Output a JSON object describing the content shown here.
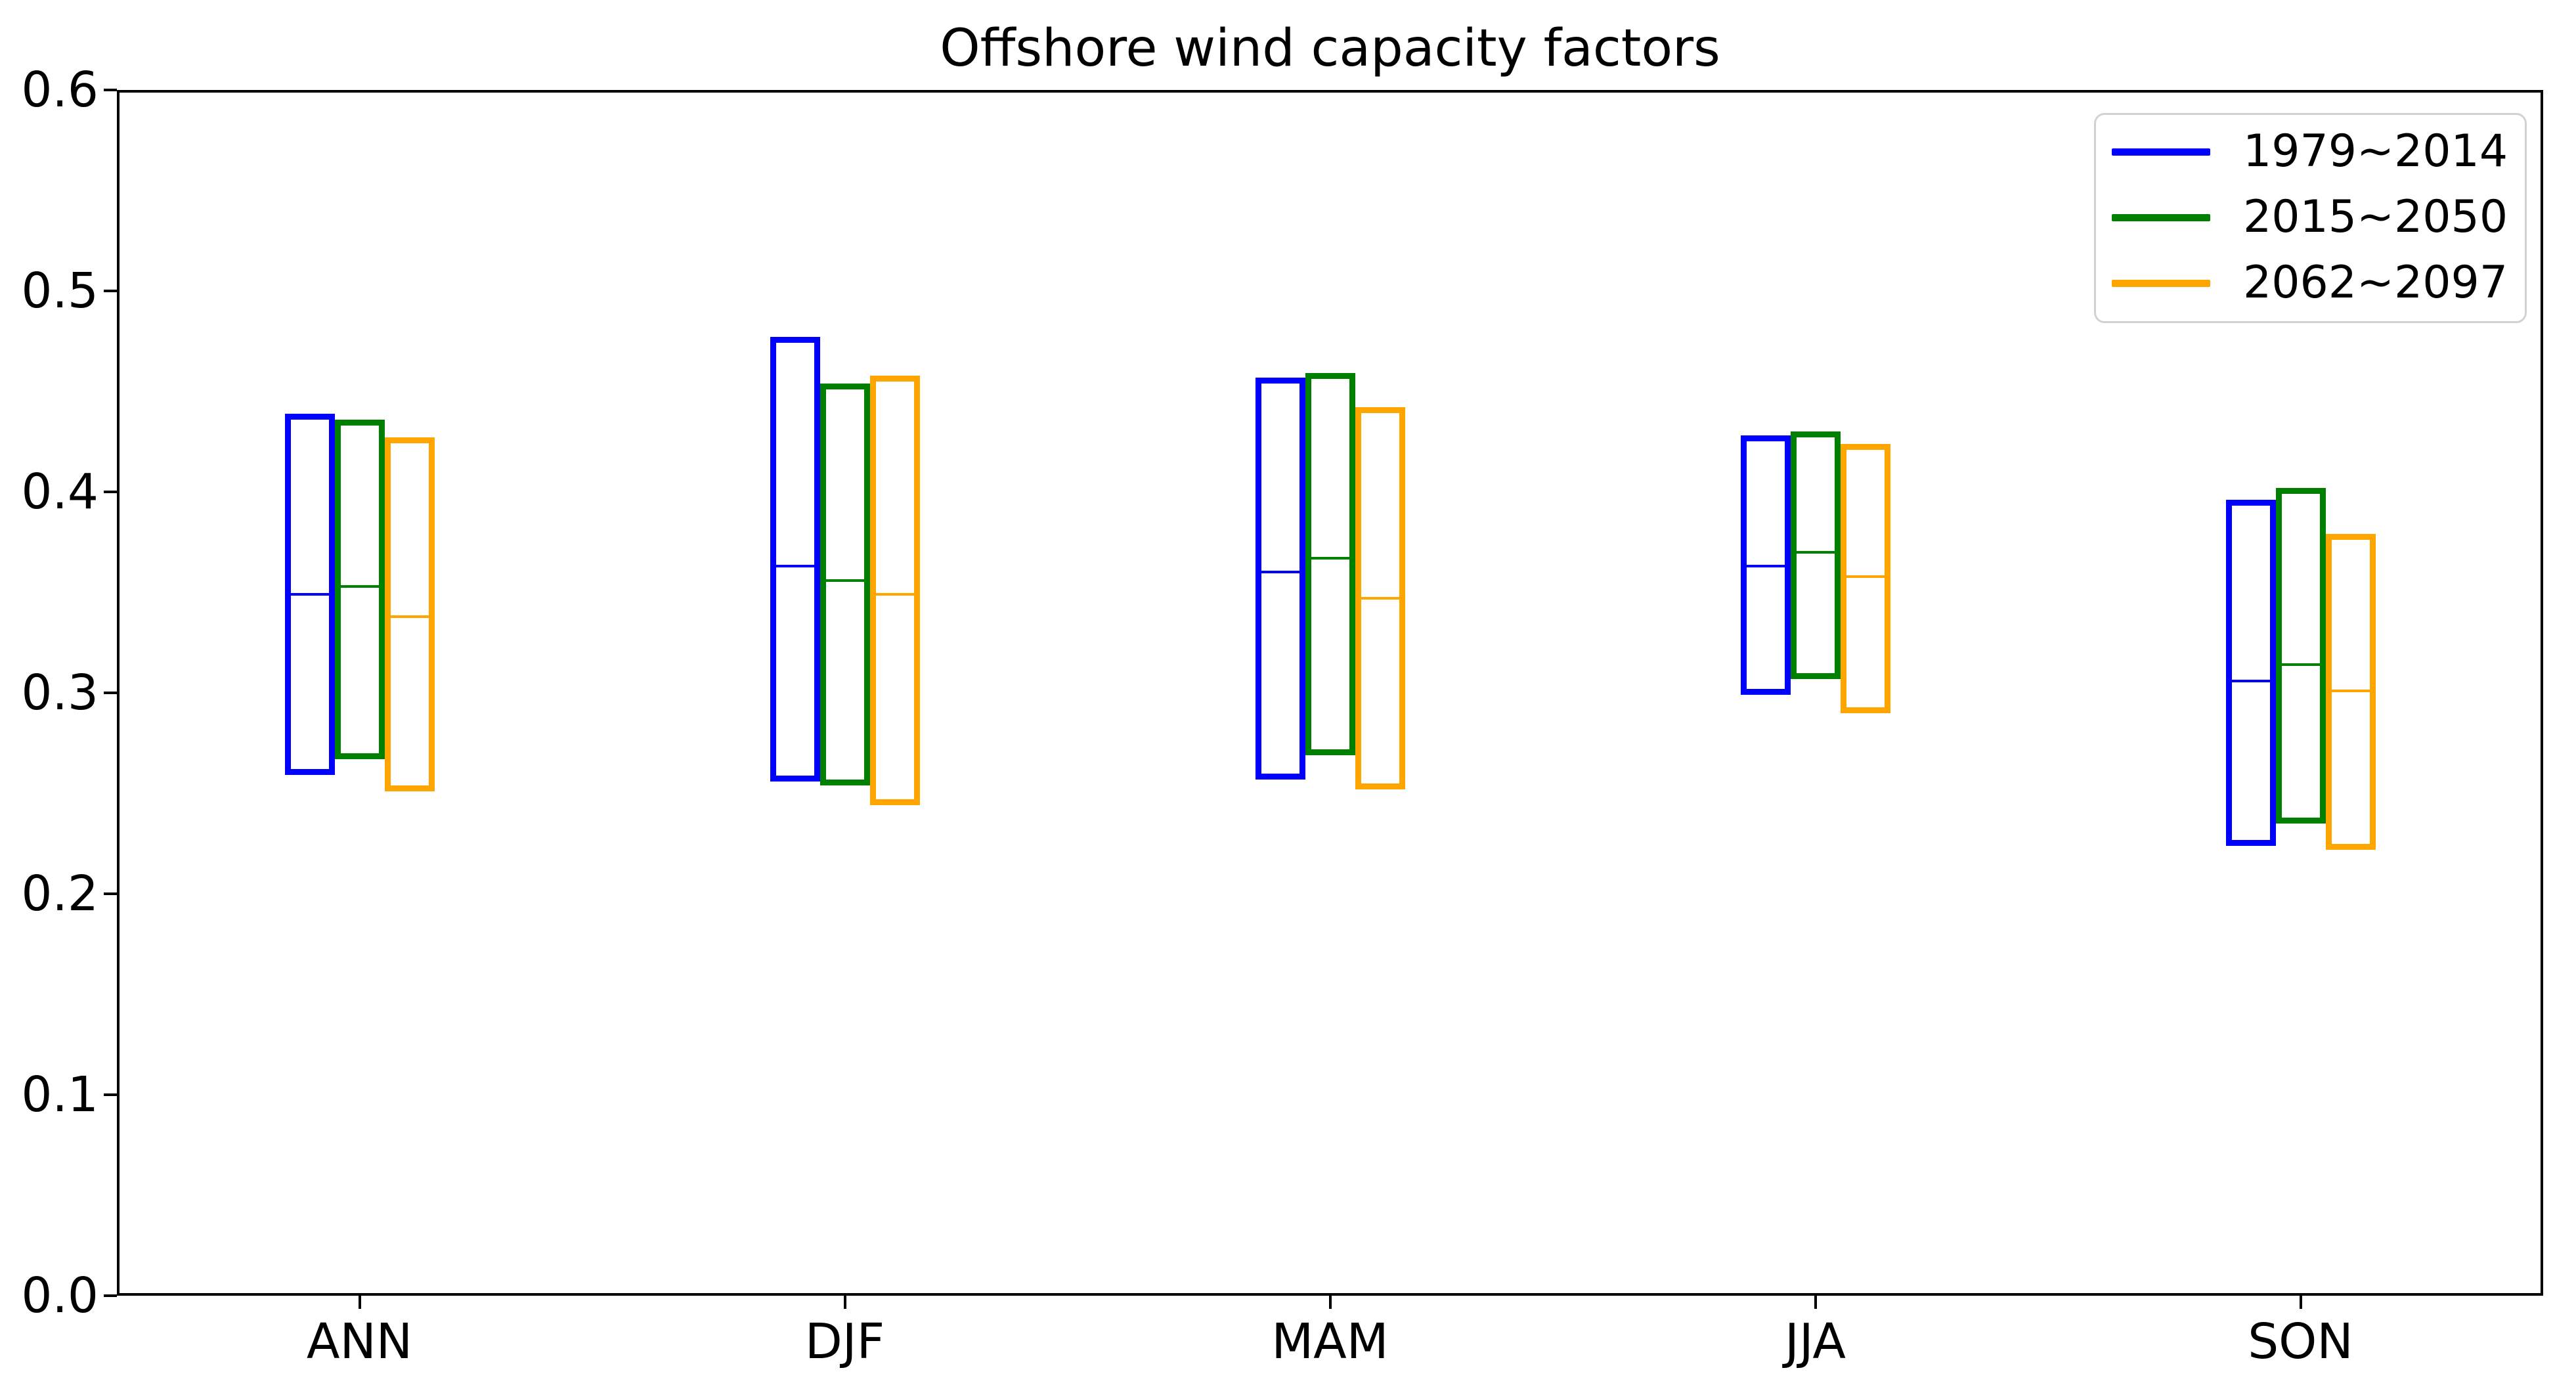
{
  "title": "Offshore wind capacity factors",
  "axis": {
    "y_tick_labels": [
      "0.0",
      "0.1",
      "0.2",
      "0.3",
      "0.4",
      "0.5",
      "0.6"
    ],
    "x_tick_labels": [
      "ANN",
      "DJF",
      "MAM",
      "JJA",
      "SON"
    ]
  },
  "legend": {
    "entries": [
      "1979~2014",
      "2015~2050",
      "2062~2097"
    ]
  },
  "colors": {
    "series_blue": "#0000ff",
    "series_green": "#008000",
    "series_orange": "#ffa500",
    "spine": "#000000",
    "legend_border": "#d2d2d2"
  },
  "chart_data": {
    "type": "boxplot",
    "title": "Offshore wind capacity factors",
    "categories": [
      "ANN",
      "DJF",
      "MAM",
      "JJA",
      "SON"
    ],
    "ylabel": "",
    "xlabel": "",
    "ylim": [
      0.0,
      0.6
    ],
    "y_tick_labels": [
      "0.0",
      "0.1",
      "0.2",
      "0.3",
      "0.4",
      "0.5",
      "0.6"
    ],
    "grid": false,
    "legend_position": "upper right",
    "box_style": "min-median-max, no whiskers, hollow boxes",
    "series": [
      {
        "name": "1979~2014",
        "color": "#0000ff",
        "boxes": [
          {
            "category": "ANN",
            "low": 0.259,
            "median": 0.349,
            "high": 0.439
          },
          {
            "category": "DJF",
            "low": 0.256,
            "median": 0.363,
            "high": 0.477
          },
          {
            "category": "MAM",
            "low": 0.257,
            "median": 0.36,
            "high": 0.457
          },
          {
            "category": "JJA",
            "low": 0.299,
            "median": 0.363,
            "high": 0.428
          },
          {
            "category": "SON",
            "low": 0.224,
            "median": 0.306,
            "high": 0.396
          }
        ]
      },
      {
        "name": "2015~2050",
        "color": "#008000",
        "boxes": [
          {
            "category": "ANN",
            "low": 0.267,
            "median": 0.353,
            "high": 0.436
          },
          {
            "category": "DJF",
            "low": 0.254,
            "median": 0.356,
            "high": 0.454
          },
          {
            "category": "MAM",
            "low": 0.269,
            "median": 0.367,
            "high": 0.459
          },
          {
            "category": "JJA",
            "low": 0.307,
            "median": 0.37,
            "high": 0.43
          },
          {
            "category": "SON",
            "low": 0.235,
            "median": 0.314,
            "high": 0.402
          }
        ]
      },
      {
        "name": "2062~2097",
        "color": "#ffa500",
        "boxes": [
          {
            "category": "ANN",
            "low": 0.251,
            "median": 0.338,
            "high": 0.427
          },
          {
            "category": "DJF",
            "low": 0.244,
            "median": 0.349,
            "high": 0.458
          },
          {
            "category": "MAM",
            "low": 0.252,
            "median": 0.347,
            "high": 0.442
          },
          {
            "category": "JJA",
            "low": 0.29,
            "median": 0.358,
            "high": 0.424
          },
          {
            "category": "SON",
            "low": 0.222,
            "median": 0.301,
            "high": 0.379
          }
        ]
      }
    ]
  }
}
